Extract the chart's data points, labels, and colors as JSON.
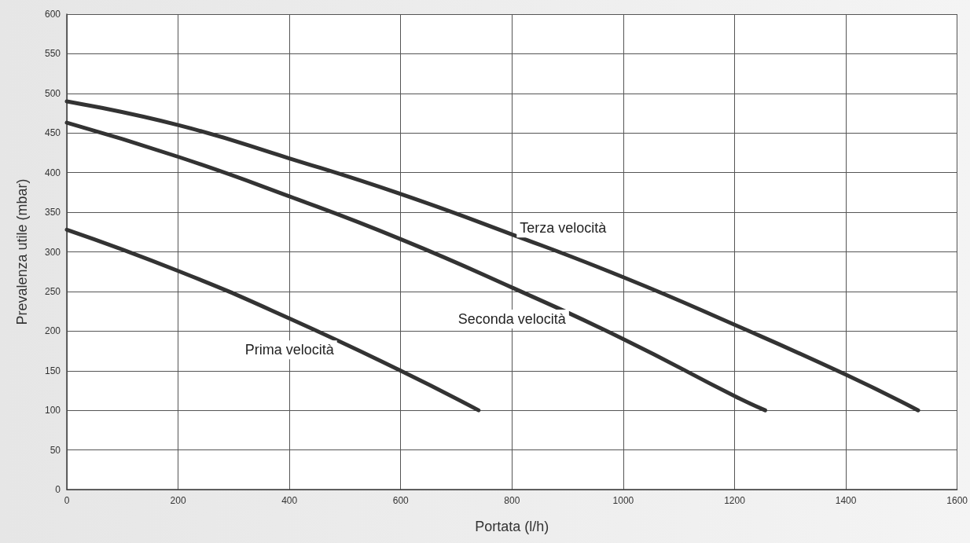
{
  "chart_data": {
    "type": "line",
    "xlabel": "Portata (l/h)",
    "ylabel": "Prevalenza utile (mbar)",
    "xlim": [
      0,
      1600
    ],
    "xticks": [
      0,
      200,
      400,
      600,
      800,
      1000,
      1200,
      1400,
      1600
    ],
    "ylim": [
      0,
      600
    ],
    "yticks": [
      0,
      50,
      100,
      150,
      200,
      250,
      300,
      350,
      400,
      450,
      500,
      550,
      600
    ],
    "grid": true,
    "line_style": "solid",
    "series": [
      {
        "name": "Terza velocità",
        "color": "#333333",
        "x": [
          0,
          200,
          400,
          600,
          800,
          1000,
          1200,
          1400,
          1530
        ],
        "values": [
          490,
          460,
          418,
          373,
          322,
          268,
          208,
          145,
          100
        ]
      },
      {
        "name": "Seconda velocità",
        "color": "#333333",
        "x": [
          0,
          200,
          400,
          600,
          800,
          1000,
          1200,
          1255
        ],
        "values": [
          463,
          420,
          370,
          316,
          255,
          190,
          118,
          100
        ]
      },
      {
        "name": "Prima velocità",
        "color": "#333333",
        "x": [
          0,
          200,
          400,
          600,
          740
        ],
        "values": [
          328,
          276,
          216,
          150,
          100
        ]
      }
    ]
  }
}
